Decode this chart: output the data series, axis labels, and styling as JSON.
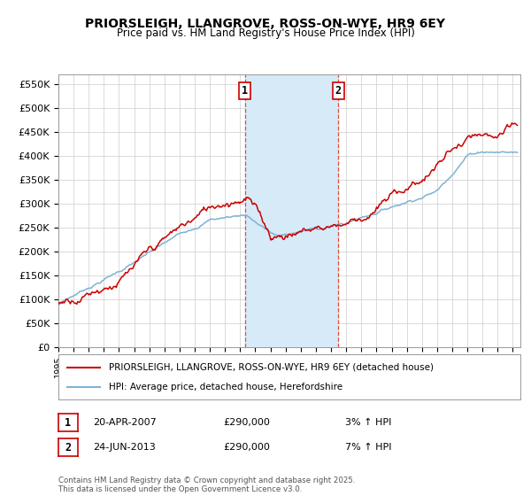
{
  "title": "PRIORSLEIGH, LLANGROVE, ROSS-ON-WYE, HR9 6EY",
  "subtitle": "Price paid vs. HM Land Registry's House Price Index (HPI)",
  "ylabel_ticks": [
    "£0",
    "£50K",
    "£100K",
    "£150K",
    "£200K",
    "£250K",
    "£300K",
    "£350K",
    "£400K",
    "£450K",
    "£500K",
    "£550K"
  ],
  "ytick_vals": [
    0,
    50000,
    100000,
    150000,
    200000,
    250000,
    300000,
    350000,
    400000,
    450000,
    500000,
    550000
  ],
  "ylim": [
    0,
    570000
  ],
  "xlim_start": 1995.0,
  "xlim_end": 2025.5,
  "xticks": [
    1995,
    1996,
    1997,
    1998,
    1999,
    2000,
    2001,
    2002,
    2003,
    2004,
    2005,
    2006,
    2007,
    2008,
    2009,
    2010,
    2011,
    2012,
    2013,
    2014,
    2015,
    2016,
    2017,
    2018,
    2019,
    2020,
    2021,
    2022,
    2023,
    2024,
    2025
  ],
  "marker1_x": 2007.3,
  "marker2_x": 2013.47,
  "shade_color": "#d6eaf8",
  "vline_color": "#e74c3c",
  "line1_color": "#cc0000",
  "line2_color": "#7fb3d3",
  "legend1_label": "PRIORSLEIGH, LLANGROVE, ROSS-ON-WYE, HR9 6EY (detached house)",
  "legend2_label": "HPI: Average price, detached house, Herefordshire",
  "ann1_label": "1",
  "ann1_date": "20-APR-2007",
  "ann1_price": "£290,000",
  "ann1_hpi": "3% ↑ HPI",
  "ann2_label": "2",
  "ann2_date": "24-JUN-2013",
  "ann2_price": "£290,000",
  "ann2_hpi": "7% ↑ HPI",
  "footer": "Contains HM Land Registry data © Crown copyright and database right 2025.\nThis data is licensed under the Open Government Licence v3.0.",
  "background_color": "#ffffff",
  "grid_color": "#cccccc"
}
